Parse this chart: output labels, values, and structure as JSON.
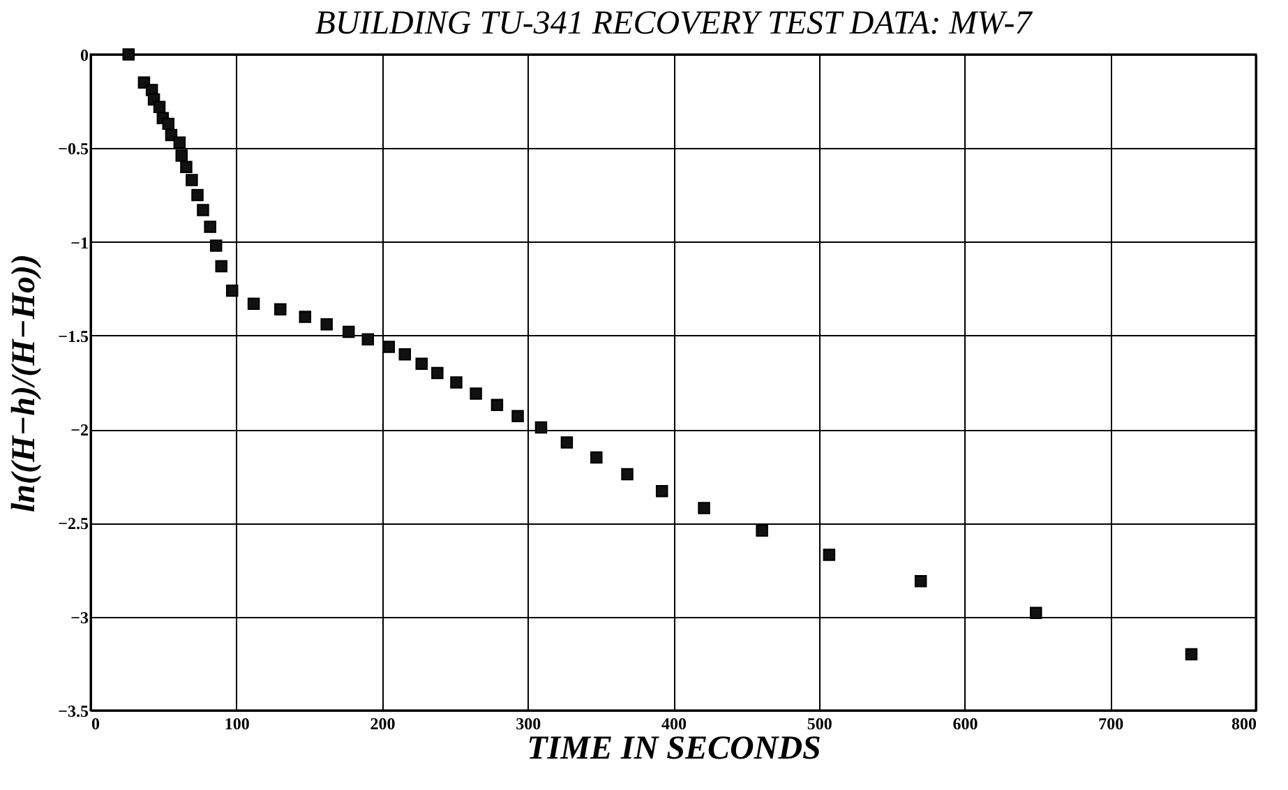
{
  "chart_data": {
    "type": "scatter",
    "title": "BUILDING TU-341 RECOVERY TEST DATA: MW-7",
    "xlabel": "TIME IN SECONDS",
    "ylabel": "ln((H−h)/(H−Ho))",
    "xlim": [
      0,
      800
    ],
    "xticks": [
      0,
      100,
      200,
      300,
      400,
      500,
      600,
      700,
      800
    ],
    "ylim": [
      -3.5,
      0
    ],
    "yticks": [
      -3.5,
      -3,
      -2.5,
      -2,
      -1.5,
      -1,
      -0.5,
      0
    ],
    "grid": true,
    "marker": "square",
    "series": [
      {
        "color": "#111111",
        "x": [
          26,
          36.6,
          42,
          43.4,
          47.2,
          49.5,
          53.3,
          55.3,
          61,
          62.4,
          65.6,
          69.4,
          73.3,
          77.1,
          82,
          86.1,
          89.7,
          97.1,
          111.9,
          130.2,
          147.2,
          162,
          177.1,
          190.3,
          204.7,
          215.7,
          227.2,
          238,
          251,
          264.5,
          279,
          293.2,
          309.2,
          326.9,
          347.2,
          368.4,
          392.2,
          421.1,
          460.9,
          507,
          569.9,
          649,
          755.7
        ],
        "values": [
          0,
          -0.15,
          -0.19,
          -0.24,
          -0.28,
          -0.34,
          -0.37,
          -0.43,
          -0.47,
          -0.54,
          -0.6,
          -0.67,
          -0.75,
          -0.83,
          -0.92,
          -1.02,
          -1.13,
          -1.26,
          -1.33,
          -1.36,
          -1.4,
          -1.44,
          -1.48,
          -1.52,
          -1.56,
          -1.6,
          -1.65,
          -1.7,
          -1.75,
          -1.81,
          -1.87,
          -1.93,
          -1.99,
          -2.07,
          -2.15,
          -2.24,
          -2.33,
          -2.42,
          -2.54,
          -2.67,
          -2.81,
          -2.98,
          -3.2
        ]
      }
    ]
  }
}
